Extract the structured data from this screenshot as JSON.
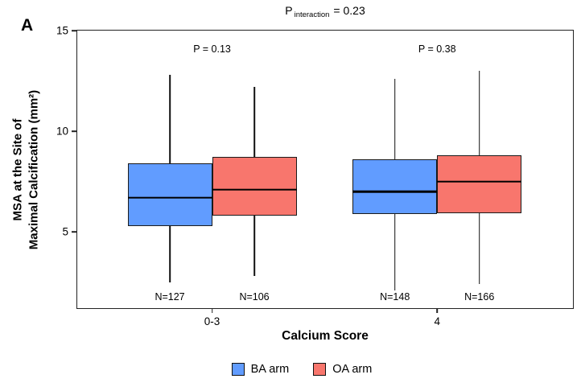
{
  "panel_label": "A",
  "title": {
    "prefix": "P",
    "subscript": "interaction",
    "suffix": "= 0.23"
  },
  "chart_data": {
    "type": "box",
    "title": "P interaction = 0.23",
    "xlabel": "Calcium Score",
    "ylabel_lines": [
      "MSA at the Site of",
      "Maximal Calcification (mm²)"
    ],
    "ylim": [
      1.2,
      15
    ],
    "yticks": [
      15,
      10,
      5
    ],
    "grid": false,
    "legend_position": "bottom",
    "group_centers_pct": [
      27.2,
      72.6
    ],
    "series": [
      {
        "name": "BA arm",
        "color": "#619CFF"
      },
      {
        "name": "OA arm",
        "color": "#F8766D"
      }
    ],
    "groups": [
      {
        "category": "0-3",
        "p_label": "P = 0.13",
        "boxes": [
          {
            "series": "BA arm",
            "whisker_low": 2.5,
            "q1": 5.3,
            "median": 6.7,
            "q3": 8.4,
            "whisker_high": 12.8,
            "n_label": "N=127"
          },
          {
            "series": "OA arm",
            "whisker_low": 2.8,
            "q1": 5.8,
            "median": 7.1,
            "q3": 8.7,
            "whisker_high": 12.2,
            "n_label": "N=106"
          }
        ]
      },
      {
        "category": "4",
        "p_label": "P = 0.38",
        "boxes": [
          {
            "series": "BA arm",
            "whisker_low": 2.1,
            "q1": 5.9,
            "median": 7.0,
            "q3": 8.6,
            "whisker_high": 12.6,
            "n_label": "N=148"
          },
          {
            "series": "OA arm",
            "whisker_low": 2.4,
            "q1": 5.9,
            "median": 7.5,
            "q3": 8.8,
            "whisker_high": 13.0,
            "n_label": "N=166"
          }
        ]
      }
    ]
  }
}
